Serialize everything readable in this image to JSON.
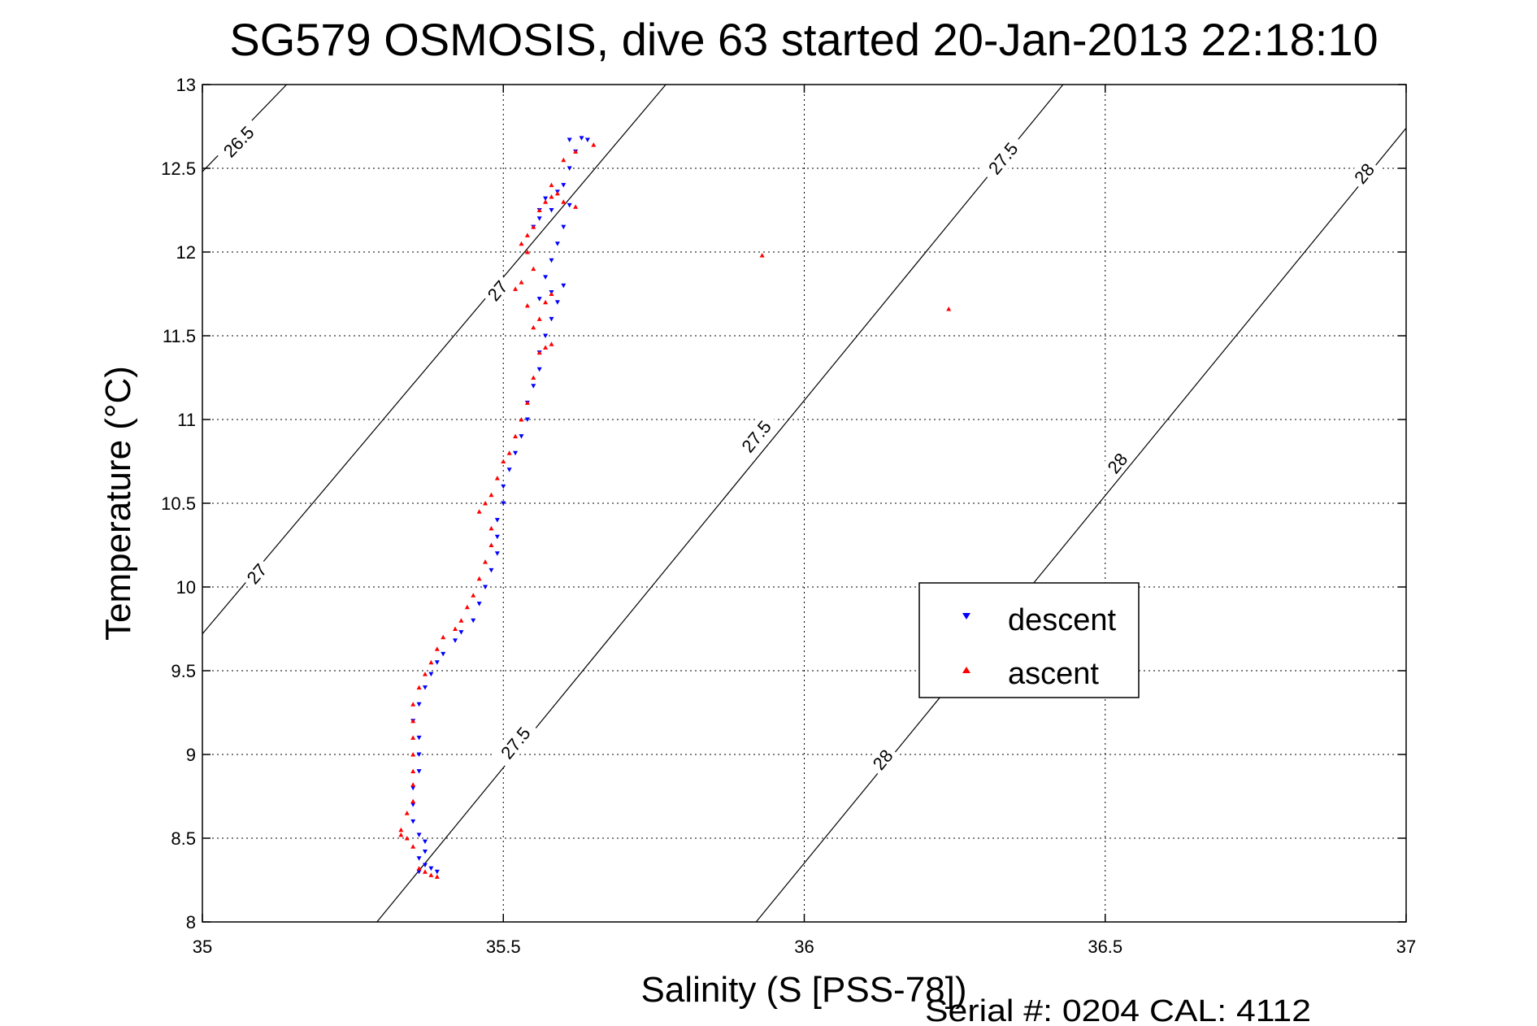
{
  "chart_data": {
    "type": "scatter",
    "title": "SG579 OSMOSIS, dive 63 started 20-Jan-2013 22:18:10",
    "xlabel": "Salinity (S [PSS-78])",
    "ylabel": "Temperature (°C)",
    "xlim": [
      35,
      37
    ],
    "ylim": [
      8,
      13
    ],
    "xticks": [
      "35",
      "35.5",
      "36",
      "36.5",
      "37"
    ],
    "yticks": [
      "8",
      "8.5",
      "9",
      "9.5",
      "10",
      "10.5",
      "11",
      "11.5",
      "12",
      "12.5",
      "13"
    ],
    "grid": true,
    "legend_position": "center-right",
    "footer": "Serial #: 0204  CAL: 4112",
    "density_contours": [
      {
        "label": "26.5",
        "points": [
          [
            35.0,
            12.48
          ],
          [
            35.14,
            13.0
          ]
        ],
        "label_at": [
          [
            35.06,
            12.66
          ]
        ]
      },
      {
        "label": "27",
        "points": [
          [
            35.0,
            9.72
          ],
          [
            35.77,
            13.0
          ]
        ],
        "label_at": [
          [
            35.09,
            10.08
          ],
          [
            35.49,
            11.77
          ]
        ]
      },
      {
        "label": "27.5",
        "points": [
          [
            35.29,
            8.0
          ],
          [
            36.43,
            13.0
          ]
        ],
        "label_at": [
          [
            35.52,
            9.07
          ],
          [
            35.92,
            10.9
          ],
          [
            36.33,
            12.56
          ]
        ]
      },
      {
        "label": "28",
        "points": [
          [
            35.92,
            8.0
          ],
          [
            37.0,
            12.74
          ]
        ],
        "label_at": [
          [
            36.13,
            8.97
          ],
          [
            36.52,
            10.74
          ],
          [
            36.93,
            12.47
          ]
        ]
      }
    ],
    "series": [
      {
        "name": "descent",
        "color": "#0000ff",
        "marker": "triangle-down",
        "points": [
          [
            35.36,
            8.3
          ],
          [
            35.38,
            8.32
          ],
          [
            35.39,
            8.3
          ],
          [
            35.37,
            8.34
          ],
          [
            35.36,
            8.38
          ],
          [
            35.37,
            8.42
          ],
          [
            35.37,
            8.48
          ],
          [
            35.36,
            8.52
          ],
          [
            35.35,
            8.6
          ],
          [
            35.35,
            8.7
          ],
          [
            35.35,
            8.8
          ],
          [
            35.36,
            8.9
          ],
          [
            35.36,
            9.0
          ],
          [
            35.36,
            9.1
          ],
          [
            35.35,
            9.2
          ],
          [
            35.36,
            9.3
          ],
          [
            35.37,
            9.4
          ],
          [
            35.38,
            9.48
          ],
          [
            35.39,
            9.55
          ],
          [
            35.4,
            9.6
          ],
          [
            35.42,
            9.68
          ],
          [
            35.43,
            9.73
          ],
          [
            35.45,
            9.8
          ],
          [
            35.46,
            9.9
          ],
          [
            35.47,
            10.0
          ],
          [
            35.48,
            10.1
          ],
          [
            35.49,
            10.2
          ],
          [
            35.49,
            10.3
          ],
          [
            35.49,
            10.4
          ],
          [
            35.5,
            10.5
          ],
          [
            35.5,
            10.6
          ],
          [
            35.51,
            10.7
          ],
          [
            35.52,
            10.8
          ],
          [
            35.53,
            10.9
          ],
          [
            35.54,
            11.0
          ],
          [
            35.54,
            11.1
          ],
          [
            35.55,
            11.2
          ],
          [
            35.56,
            11.3
          ],
          [
            35.56,
            11.4
          ],
          [
            35.57,
            11.5
          ],
          [
            35.58,
            11.6
          ],
          [
            35.59,
            11.7
          ],
          [
            35.6,
            11.8
          ],
          [
            35.58,
            11.76
          ],
          [
            35.56,
            11.72
          ],
          [
            35.57,
            11.85
          ],
          [
            35.58,
            11.95
          ],
          [
            35.59,
            12.05
          ],
          [
            35.6,
            12.15
          ],
          [
            35.61,
            12.28
          ],
          [
            35.58,
            12.25
          ],
          [
            35.56,
            12.2
          ],
          [
            35.55,
            12.15
          ],
          [
            35.56,
            12.25
          ],
          [
            35.57,
            12.32
          ],
          [
            35.59,
            12.36
          ],
          [
            35.6,
            12.4
          ],
          [
            35.61,
            12.5
          ],
          [
            35.62,
            12.6
          ],
          [
            35.61,
            12.67
          ],
          [
            35.63,
            12.68
          ],
          [
            35.64,
            12.67
          ]
        ]
      },
      {
        "name": "ascent",
        "color": "#ff0000",
        "marker": "triangle-up",
        "points": [
          [
            35.39,
            8.27
          ],
          [
            35.38,
            8.28
          ],
          [
            35.37,
            8.3
          ],
          [
            35.36,
            8.32
          ],
          [
            35.35,
            8.45
          ],
          [
            35.34,
            8.5
          ],
          [
            35.33,
            8.52
          ],
          [
            35.33,
            8.55
          ],
          [
            35.34,
            8.65
          ],
          [
            35.35,
            8.72
          ],
          [
            35.35,
            8.82
          ],
          [
            35.35,
            8.9
          ],
          [
            35.35,
            9.0
          ],
          [
            35.35,
            9.1
          ],
          [
            35.35,
            9.2
          ],
          [
            35.35,
            9.3
          ],
          [
            35.36,
            9.4
          ],
          [
            35.37,
            9.48
          ],
          [
            35.38,
            9.55
          ],
          [
            35.39,
            9.63
          ],
          [
            35.4,
            9.7
          ],
          [
            35.42,
            9.75
          ],
          [
            35.43,
            9.8
          ],
          [
            35.44,
            9.88
          ],
          [
            35.45,
            9.95
          ],
          [
            35.46,
            10.05
          ],
          [
            35.47,
            10.15
          ],
          [
            35.48,
            10.25
          ],
          [
            35.48,
            10.35
          ],
          [
            35.46,
            10.45
          ],
          [
            35.47,
            10.5
          ],
          [
            35.48,
            10.55
          ],
          [
            35.49,
            10.65
          ],
          [
            35.5,
            10.75
          ],
          [
            35.51,
            10.8
          ],
          [
            35.52,
            10.9
          ],
          [
            35.53,
            11.0
          ],
          [
            35.54,
            11.1
          ],
          [
            35.55,
            11.25
          ],
          [
            35.56,
            11.4
          ],
          [
            35.57,
            11.43
          ],
          [
            35.58,
            11.45
          ],
          [
            35.55,
            11.55
          ],
          [
            35.56,
            11.6
          ],
          [
            35.57,
            11.7
          ],
          [
            35.58,
            11.75
          ],
          [
            35.54,
            11.68
          ],
          [
            35.52,
            11.78
          ],
          [
            35.53,
            11.82
          ],
          [
            35.55,
            11.9
          ],
          [
            35.54,
            12.0
          ],
          [
            35.53,
            12.05
          ],
          [
            35.54,
            12.1
          ],
          [
            35.55,
            12.15
          ],
          [
            35.56,
            12.25
          ],
          [
            35.57,
            12.3
          ],
          [
            35.58,
            12.33
          ],
          [
            35.59,
            12.35
          ],
          [
            35.6,
            12.3
          ],
          [
            35.62,
            12.27
          ],
          [
            35.58,
            12.4
          ],
          [
            35.6,
            12.55
          ],
          [
            35.62,
            12.6
          ],
          [
            35.65,
            12.64
          ],
          [
            35.93,
            11.98
          ],
          [
            36.24,
            11.66
          ]
        ]
      }
    ]
  }
}
